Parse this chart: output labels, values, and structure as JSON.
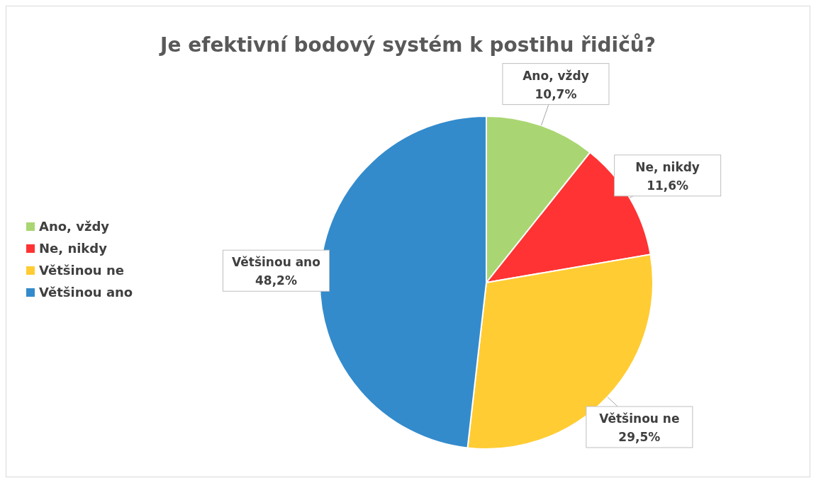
{
  "chart_data": {
    "type": "pie",
    "title": "Je efektivní bodový systém k postihu řidičů?",
    "categories": [
      "Ano, vždy",
      "Ne, nikdy",
      "Většinou ne",
      "Většinou ano"
    ],
    "values": [
      10.7,
      11.6,
      29.5,
      48.2
    ],
    "value_labels": [
      "10,7%",
      "11,6%",
      "29,5%",
      "48,2%"
    ],
    "colors": [
      "#a9d672",
      "#ff3333",
      "#ffcc33",
      "#338bcc"
    ],
    "legend": "left"
  }
}
